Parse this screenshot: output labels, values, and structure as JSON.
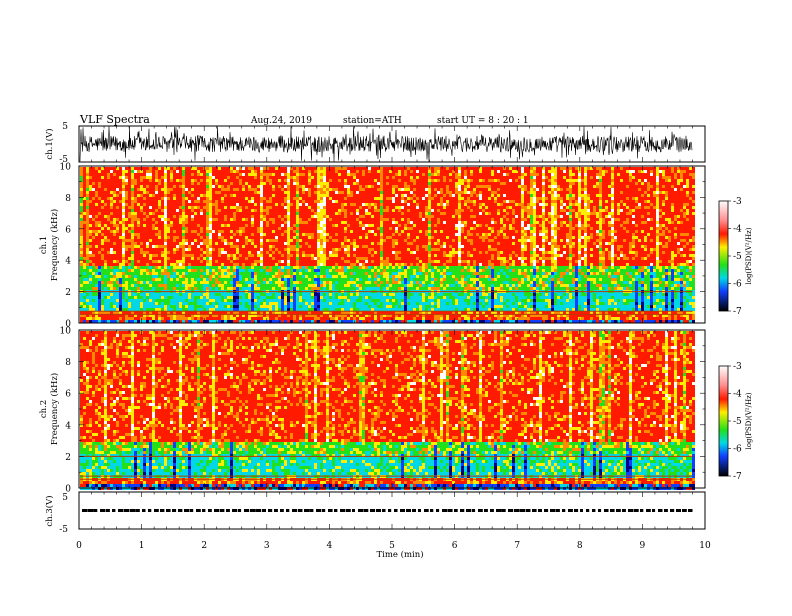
{
  "header": {
    "title": "VLF  Spectra",
    "date": "Aug.24, 2019",
    "station": "station=ATH",
    "start": "start  UT  =   8  : 20 : 1"
  },
  "chart_data": [
    {
      "type": "line",
      "panel": "ch1-waveform",
      "ylabel": "ch.1(V)",
      "ylim": [
        -5,
        5
      ],
      "yticks": [
        "5",
        "-5"
      ],
      "xlim": [
        0,
        10
      ],
      "data_end_min": 9.8,
      "trace": "dense noise waveform, amplitude mostly within ±2 V"
    },
    {
      "type": "heatmap",
      "panel": "ch1-spectrogram",
      "channel_label": "ch.1",
      "ylabel": "Frequency  (kHz)",
      "ylim": [
        0,
        10
      ],
      "yticks": [
        "0",
        "2",
        "4",
        "6",
        "8",
        "10"
      ],
      "xlim": [
        0,
        10
      ],
      "data_end_min": 9.8,
      "colorbar": {
        "label": "log(PSD)(V²/Hz)",
        "range": [
          -7,
          -3
        ],
        "ticks": [
          "-3",
          "-4",
          "-5",
          "-6",
          "-7"
        ]
      },
      "bands_khz": {
        "cyan_band": [
          0.8,
          2.2
        ],
        "green_band": [
          2.2,
          3.8
        ],
        "high_red": [
          4,
          10
        ]
      }
    },
    {
      "type": "heatmap",
      "panel": "ch2-spectrogram",
      "channel_label": "ch.2",
      "ylabel": "Frequency  (kHz)",
      "ylim": [
        0,
        10
      ],
      "yticks": [
        "0",
        "2",
        "4",
        "6",
        "8",
        "10"
      ],
      "xlim": [
        0,
        10
      ],
      "data_end_min": 9.8,
      "colorbar": {
        "label": "log(PSD)(V²/Hz)",
        "range": [
          -7,
          -3
        ],
        "ticks": [
          "-3",
          "-4",
          "-5",
          "-6",
          "-7"
        ]
      },
      "bands_khz": {
        "cyan_band": [
          1.0,
          2.2
        ],
        "green_band": [
          2.2,
          3.0
        ],
        "high_red": [
          3,
          10
        ]
      }
    },
    {
      "type": "line",
      "panel": "ch3-waveform",
      "ylabel": "ch.3(V)",
      "ylim": [
        -5,
        5
      ],
      "yticks": [
        "5",
        "-5"
      ],
      "xlim": [
        0,
        10
      ],
      "xticks": [
        "0",
        "1",
        "2",
        "3",
        "4",
        "5",
        "6",
        "7",
        "8",
        "9",
        "10"
      ],
      "xlabel": "Time  (min)",
      "level_v": 0,
      "data_end_min": 9.8
    }
  ],
  "colors": {
    "red": "#ff1a00",
    "orange": "#ff8a00",
    "yellow": "#ffee00",
    "green": "#22e01a",
    "cyan": "#00d8e6",
    "blue": "#1040ff",
    "navy": "#000080",
    "black": "#000000"
  }
}
